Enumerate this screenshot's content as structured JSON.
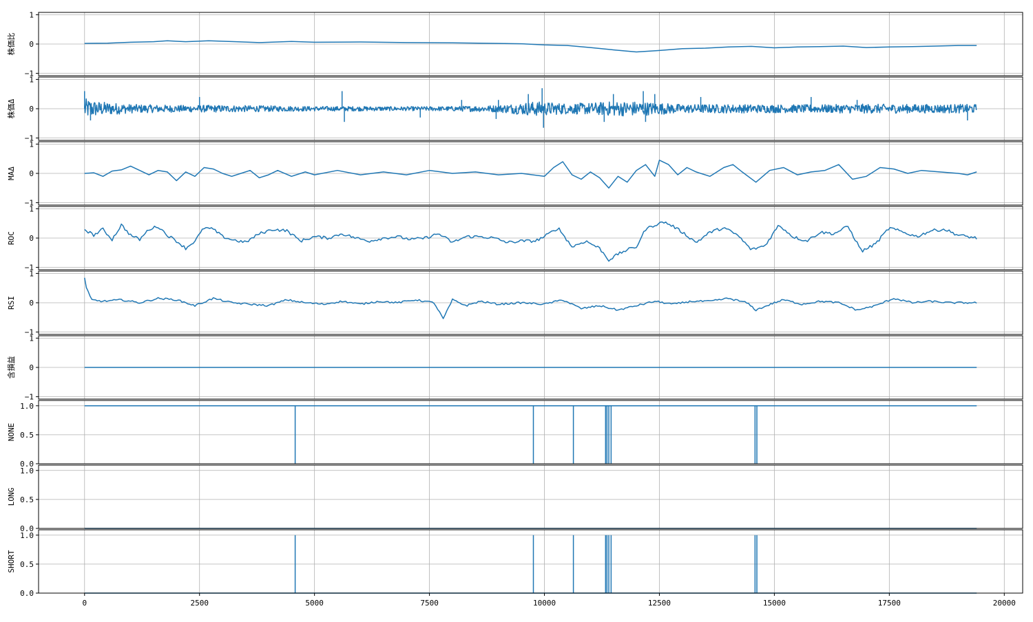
{
  "chart_data": {
    "type": "line",
    "x_ticks": [
      0,
      2500,
      5000,
      7500,
      10000,
      12500,
      15000,
      17500,
      20000
    ],
    "xlim": [
      -1000,
      20400
    ],
    "x_end": 19400,
    "grid": true,
    "series_color": "#1f77b4",
    "panels": [
      {
        "ylabel": "株価比",
        "ylim": [
          -1,
          1
        ],
        "yticks": [
          -1,
          0,
          1
        ],
        "points": [
          [
            0,
            0.02
          ],
          [
            500,
            0.03
          ],
          [
            1000,
            0.06
          ],
          [
            1500,
            0.08
          ],
          [
            1800,
            0.11
          ],
          [
            2200,
            0.08
          ],
          [
            2700,
            0.11
          ],
          [
            3300,
            0.08
          ],
          [
            3800,
            0.05
          ],
          [
            4500,
            0.09
          ],
          [
            5000,
            0.06
          ],
          [
            6000,
            0.07
          ],
          [
            7000,
            0.05
          ],
          [
            8000,
            0.04
          ],
          [
            9000,
            0.02
          ],
          [
            9500,
            0.01
          ],
          [
            10000,
            -0.03
          ],
          [
            10500,
            -0.05
          ],
          [
            11000,
            -0.12
          ],
          [
            11500,
            -0.2
          ],
          [
            12000,
            -0.27
          ],
          [
            12500,
            -0.22
          ],
          [
            13000,
            -0.16
          ],
          [
            13500,
            -0.14
          ],
          [
            14000,
            -0.1
          ],
          [
            14500,
            -0.08
          ],
          [
            15000,
            -0.13
          ],
          [
            15500,
            -0.1
          ],
          [
            16000,
            -0.09
          ],
          [
            16500,
            -0.07
          ],
          [
            17000,
            -0.12
          ],
          [
            17500,
            -0.1
          ],
          [
            18000,
            -0.09
          ],
          [
            18500,
            -0.07
          ],
          [
            19000,
            -0.05
          ],
          [
            19400,
            -0.05
          ]
        ]
      },
      {
        "ylabel": "株価Δ",
        "ylim": [
          -1,
          1
        ],
        "yticks": [
          -1,
          0,
          1
        ],
        "noise": true,
        "envelope": [
          [
            0,
            0.35
          ],
          [
            300,
            0.25
          ],
          [
            1000,
            0.15
          ],
          [
            2000,
            0.12
          ],
          [
            3000,
            0.12
          ],
          [
            4000,
            0.1
          ],
          [
            5000,
            0.08
          ],
          [
            6000,
            0.08
          ],
          [
            7000,
            0.07
          ],
          [
            8000,
            0.08
          ],
          [
            9000,
            0.12
          ],
          [
            9800,
            0.25
          ],
          [
            10500,
            0.18
          ],
          [
            11000,
            0.2
          ],
          [
            11500,
            0.25
          ],
          [
            12000,
            0.25
          ],
          [
            12500,
            0.2
          ],
          [
            13000,
            0.15
          ],
          [
            14000,
            0.15
          ],
          [
            15000,
            0.14
          ],
          [
            16000,
            0.14
          ],
          [
            17000,
            0.16
          ],
          [
            18000,
            0.15
          ],
          [
            19400,
            0.15
          ]
        ],
        "spikes": [
          [
            0,
            0.6
          ],
          [
            130,
            -0.4
          ],
          [
            2500,
            0.4
          ],
          [
            5600,
            0.6
          ],
          [
            5650,
            -0.45
          ],
          [
            7300,
            -0.3
          ],
          [
            8200,
            0.3
          ],
          [
            8950,
            -0.35
          ],
          [
            9000,
            0.3
          ],
          [
            9650,
            0.5
          ],
          [
            9950,
            0.7
          ],
          [
            9980,
            -0.65
          ],
          [
            11300,
            -0.45
          ],
          [
            11500,
            0.5
          ],
          [
            12150,
            0.6
          ],
          [
            12200,
            -0.45
          ],
          [
            12400,
            0.5
          ],
          [
            13400,
            0.4
          ],
          [
            15800,
            0.4
          ],
          [
            16800,
            0.3
          ],
          [
            19200,
            -0.4
          ]
        ]
      },
      {
        "ylabel": "MAΔ",
        "ylim": [
          -1,
          1
        ],
        "yticks": [
          -1,
          0,
          1
        ],
        "points": [
          [
            0,
            0
          ],
          [
            200,
            0.02
          ],
          [
            400,
            -0.1
          ],
          [
            600,
            0.08
          ],
          [
            800,
            0.12
          ],
          [
            1000,
            0.25
          ],
          [
            1200,
            0.1
          ],
          [
            1400,
            -0.05
          ],
          [
            1600,
            0.1
          ],
          [
            1800,
            0.05
          ],
          [
            2000,
            -0.25
          ],
          [
            2200,
            0.05
          ],
          [
            2400,
            -0.1
          ],
          [
            2600,
            0.2
          ],
          [
            2800,
            0.15
          ],
          [
            3000,
            0
          ],
          [
            3200,
            -0.1
          ],
          [
            3400,
            0
          ],
          [
            3600,
            0.1
          ],
          [
            3800,
            -0.15
          ],
          [
            4000,
            -0.05
          ],
          [
            4200,
            0.1
          ],
          [
            4500,
            -0.1
          ],
          [
            4800,
            0.05
          ],
          [
            5000,
            -0.05
          ],
          [
            5500,
            0.1
          ],
          [
            6000,
            -0.05
          ],
          [
            6500,
            0.05
          ],
          [
            7000,
            -0.05
          ],
          [
            7500,
            0.1
          ],
          [
            8000,
            0
          ],
          [
            8500,
            0.05
          ],
          [
            9000,
            -0.05
          ],
          [
            9500,
            0
          ],
          [
            10000,
            -0.1
          ],
          [
            10200,
            0.2
          ],
          [
            10400,
            0.4
          ],
          [
            10600,
            -0.05
          ],
          [
            10800,
            -0.2
          ],
          [
            11000,
            0.05
          ],
          [
            11200,
            -0.15
          ],
          [
            11400,
            -0.5
          ],
          [
            11600,
            -0.1
          ],
          [
            11800,
            -0.3
          ],
          [
            12000,
            0.1
          ],
          [
            12200,
            0.3
          ],
          [
            12400,
            -0.1
          ],
          [
            12500,
            0.45
          ],
          [
            12700,
            0.3
          ],
          [
            12900,
            -0.05
          ],
          [
            13100,
            0.2
          ],
          [
            13300,
            0.05
          ],
          [
            13600,
            -0.1
          ],
          [
            13900,
            0.2
          ],
          [
            14100,
            0.3
          ],
          [
            14300,
            0.05
          ],
          [
            14600,
            -0.3
          ],
          [
            14900,
            0.1
          ],
          [
            15200,
            0.2
          ],
          [
            15500,
            -0.05
          ],
          [
            15800,
            0.05
          ],
          [
            16100,
            0.1
          ],
          [
            16400,
            0.3
          ],
          [
            16700,
            -0.2
          ],
          [
            17000,
            -0.1
          ],
          [
            17300,
            0.2
          ],
          [
            17600,
            0.15
          ],
          [
            17900,
            0
          ],
          [
            18200,
            0.1
          ],
          [
            18600,
            0.05
          ],
          [
            19000,
            0
          ],
          [
            19200,
            -0.05
          ],
          [
            19400,
            0.05
          ]
        ]
      },
      {
        "ylabel": "ROC",
        "ylim": [
          -1,
          1
        ],
        "yticks": [
          -1,
          0,
          1
        ],
        "jitter": 0.05,
        "points": [
          [
            0,
            0.3
          ],
          [
            200,
            0.1
          ],
          [
            400,
            0.3
          ],
          [
            600,
            -0.05
          ],
          [
            800,
            0.45
          ],
          [
            1000,
            0.1
          ],
          [
            1200,
            -0.05
          ],
          [
            1400,
            0.3
          ],
          [
            1600,
            0.4
          ],
          [
            1800,
            0.1
          ],
          [
            2000,
            -0.1
          ],
          [
            2200,
            -0.35
          ],
          [
            2400,
            -0.1
          ],
          [
            2600,
            0.35
          ],
          [
            2800,
            0.3
          ],
          [
            3000,
            0.05
          ],
          [
            3200,
            -0.05
          ],
          [
            3500,
            -0.15
          ],
          [
            3800,
            0.15
          ],
          [
            4100,
            0.3
          ],
          [
            4400,
            0.25
          ],
          [
            4700,
            -0.1
          ],
          [
            5000,
            0.05
          ],
          [
            5300,
            0
          ],
          [
            5600,
            0.15
          ],
          [
            5900,
            0
          ],
          [
            6200,
            -0.1
          ],
          [
            6500,
            0
          ],
          [
            6800,
            0.05
          ],
          [
            7100,
            -0.05
          ],
          [
            7400,
            0
          ],
          [
            7700,
            0.15
          ],
          [
            8000,
            -0.15
          ],
          [
            8300,
            0.05
          ],
          [
            8600,
            0.05
          ],
          [
            8900,
            0
          ],
          [
            9200,
            -0.15
          ],
          [
            9500,
            -0.1
          ],
          [
            9800,
            -0.1
          ],
          [
            10000,
            0.05
          ],
          [
            10300,
            0.35
          ],
          [
            10600,
            -0.3
          ],
          [
            10900,
            -0.1
          ],
          [
            11200,
            -0.35
          ],
          [
            11400,
            -0.75
          ],
          [
            11600,
            -0.55
          ],
          [
            11800,
            -0.4
          ],
          [
            12000,
            -0.3
          ],
          [
            12200,
            0.3
          ],
          [
            12400,
            0.45
          ],
          [
            12600,
            0.55
          ],
          [
            12800,
            0.4
          ],
          [
            13000,
            0.2
          ],
          [
            13300,
            -0.15
          ],
          [
            13600,
            0.2
          ],
          [
            13900,
            0.35
          ],
          [
            14200,
            0.1
          ],
          [
            14500,
            -0.4
          ],
          [
            14800,
            -0.25
          ],
          [
            15100,
            0.45
          ],
          [
            15400,
            0.05
          ],
          [
            15700,
            -0.1
          ],
          [
            16000,
            0.2
          ],
          [
            16300,
            0.15
          ],
          [
            16600,
            0.4
          ],
          [
            16900,
            -0.45
          ],
          [
            17200,
            -0.2
          ],
          [
            17500,
            0.35
          ],
          [
            17800,
            0.2
          ],
          [
            18100,
            0.05
          ],
          [
            18400,
            0.25
          ],
          [
            18700,
            0.3
          ],
          [
            19000,
            0.1
          ],
          [
            19400,
            0
          ]
        ]
      },
      {
        "ylabel": "RSI",
        "ylim": [
          -1,
          1
        ],
        "yticks": [
          -1,
          0,
          1
        ],
        "jitter": 0.03,
        "points": [
          [
            0,
            0.85
          ],
          [
            20,
            -0.95
          ],
          [
            40,
            0.5
          ],
          [
            150,
            0.1
          ],
          [
            400,
            0.05
          ],
          [
            800,
            0.1
          ],
          [
            1200,
            0
          ],
          [
            1600,
            0.15
          ],
          [
            2000,
            0.1
          ],
          [
            2400,
            -0.1
          ],
          [
            2800,
            0.15
          ],
          [
            3200,
            0
          ],
          [
            3600,
            -0.05
          ],
          [
            4000,
            -0.1
          ],
          [
            4400,
            0.1
          ],
          [
            4800,
            0
          ],
          [
            5200,
            -0.05
          ],
          [
            5600,
            0.05
          ],
          [
            6000,
            -0.05
          ],
          [
            6400,
            0.05
          ],
          [
            6800,
            0
          ],
          [
            7200,
            0.1
          ],
          [
            7600,
            0
          ],
          [
            7800,
            -0.55
          ],
          [
            8000,
            0.1
          ],
          [
            8300,
            -0.1
          ],
          [
            8600,
            0.05
          ],
          [
            9000,
            -0.05
          ],
          [
            9500,
            0
          ],
          [
            10000,
            -0.05
          ],
          [
            10400,
            0.1
          ],
          [
            10800,
            -0.2
          ],
          [
            11200,
            -0.1
          ],
          [
            11600,
            -0.25
          ],
          [
            12000,
            -0.1
          ],
          [
            12400,
            0.05
          ],
          [
            12800,
            -0.05
          ],
          [
            13200,
            0.05
          ],
          [
            13600,
            0.05
          ],
          [
            14000,
            0.15
          ],
          [
            14400,
            0
          ],
          [
            14600,
            -0.25
          ],
          [
            15000,
            0
          ],
          [
            15200,
            0.1
          ],
          [
            15600,
            -0.05
          ],
          [
            16000,
            0.05
          ],
          [
            16400,
            0
          ],
          [
            16800,
            -0.25
          ],
          [
            17200,
            -0.1
          ],
          [
            17600,
            0.15
          ],
          [
            18000,
            0
          ],
          [
            18400,
            0.05
          ],
          [
            18800,
            0
          ],
          [
            19400,
            0
          ]
        ]
      },
      {
        "ylabel": "含損益",
        "ylim": [
          -1,
          1
        ],
        "yticks": [
          -1,
          0,
          1
        ],
        "points": [
          [
            0,
            0
          ],
          [
            19400,
            0
          ]
        ]
      },
      {
        "ylabel": "NONE",
        "ylim": [
          0,
          1.05
        ],
        "yticks": [
          0.0,
          0.5,
          1.0
        ],
        "step": {
          "base": 1,
          "flip": 0,
          "events": [
            4580,
            9760,
            10630,
            11330,
            11360,
            11400,
            11450,
            14580,
            14620
          ]
        }
      },
      {
        "ylabel": "LONG",
        "ylim": [
          0,
          1.05
        ],
        "yticks": [
          0.0,
          0.5,
          1.0
        ],
        "step": {
          "base": 0,
          "flip": 0,
          "events": []
        }
      },
      {
        "ylabel": "SHORT",
        "ylim": [
          0,
          1.05
        ],
        "yticks": [
          0.0,
          0.5,
          1.0
        ],
        "step": {
          "base": 0,
          "flip": 1,
          "events": [
            4580,
            9760,
            10630,
            11330,
            11360,
            11400,
            11450,
            14580,
            14620
          ]
        }
      }
    ]
  }
}
